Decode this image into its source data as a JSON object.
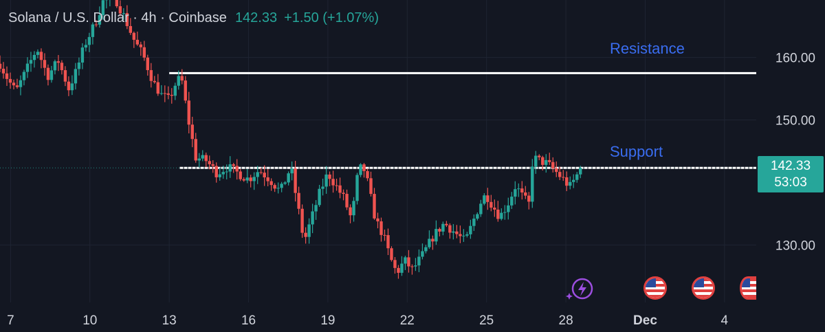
{
  "header": {
    "symbol": "Solana / U.S. Dollar · 4h · Coinbase",
    "last": "142.33",
    "change": "+1.50 (+1.07%)"
  },
  "annotations": {
    "resistance": "Resistance",
    "support": "Support"
  },
  "price_label": {
    "value": "142.33",
    "countdown": "53:03"
  },
  "colors": {
    "background": "#131722",
    "up": "#26a69a",
    "down": "#ef5350",
    "annotation_text": "#3a6df0",
    "level_line": "#ffffff",
    "event_icon": "#e0403f"
  },
  "icons": [
    "lightning-icon",
    "us-flag-icon",
    "us-flag-icon",
    "us-flag-icon"
  ],
  "chart_data": {
    "type": "candlestick",
    "title": "Solana / U.S. Dollar · 4h · Coinbase",
    "ylim": [
      120.8,
      169.2
    ],
    "yticks": [
      130,
      150,
      160
    ],
    "ytick_labels": [
      "130.00",
      "150.00",
      "160.00"
    ],
    "xtick_labels": [
      "7",
      "10",
      "13",
      "16",
      "19",
      "22",
      "25",
      "28",
      "Dec",
      "4"
    ],
    "xtick_days": [
      7,
      10,
      13,
      16,
      19,
      22,
      25,
      28,
      31,
      34
    ],
    "x_start_day": 6.6,
    "x_end_day": 35.2,
    "last_price": 142.33,
    "levels": [
      {
        "name": "Resistance",
        "price": 157.5,
        "from_day": 13.0,
        "to_day": 35.2
      },
      {
        "name": "Support",
        "price": 142.33,
        "from_day": 13.4,
        "to_day": 35.2
      }
    ],
    "path_days": [
      6.6,
      6.9,
      7.2,
      7.6,
      8.0,
      8.4,
      8.8,
      9.2,
      9.5,
      9.8,
      10.2,
      10.5,
      10.9,
      11.3,
      11.7,
      12.0,
      12.4,
      12.7,
      13.0,
      13.2,
      13.45,
      13.7,
      14.0,
      14.4,
      14.8,
      15.2,
      15.6,
      16.0,
      16.4,
      16.8,
      17.2,
      17.6,
      17.85,
      18.1,
      18.4,
      18.7,
      19.0,
      19.3,
      19.6,
      19.9,
      20.1,
      20.3,
      20.5,
      20.8,
      21.1,
      21.35,
      21.6,
      21.9,
      22.2,
      22.6,
      23.0,
      23.4,
      23.8,
      24.2,
      24.6,
      24.85,
      25.0,
      25.2,
      25.5,
      25.8,
      26.1,
      26.4,
      26.6,
      26.75,
      27.0,
      27.3,
      27.6,
      27.9,
      28.15,
      28.4,
      28.55
    ],
    "path_prices": [
      159.0,
      156.5,
      154.5,
      158.0,
      161.5,
      157.0,
      159.5,
      155.0,
      158.0,
      162.0,
      165.5,
      169.0,
      170.0,
      166.5,
      162.5,
      160.5,
      156.0,
      154.0,
      153.2,
      155.5,
      157.0,
      150.5,
      144.0,
      143.5,
      141.5,
      142.5,
      141.5,
      140.5,
      142.0,
      140.5,
      138.5,
      142.5,
      136.5,
      130.5,
      134.5,
      138.5,
      141.5,
      139.5,
      137.5,
      134.0,
      140.5,
      143.0,
      140.0,
      134.0,
      131.5,
      128.0,
      125.5,
      127.5,
      126.0,
      128.5,
      131.5,
      133.5,
      132.0,
      130.5,
      135.0,
      137.5,
      138.0,
      136.5,
      134.5,
      136.5,
      139.5,
      137.5,
      136.5,
      144.0,
      143.5,
      143.0,
      141.8,
      140.5,
      139.3,
      141.0,
      142.33
    ],
    "candle_count": 170,
    "candle_width_days": 0.115,
    "wick_ratio": 0.55
  }
}
